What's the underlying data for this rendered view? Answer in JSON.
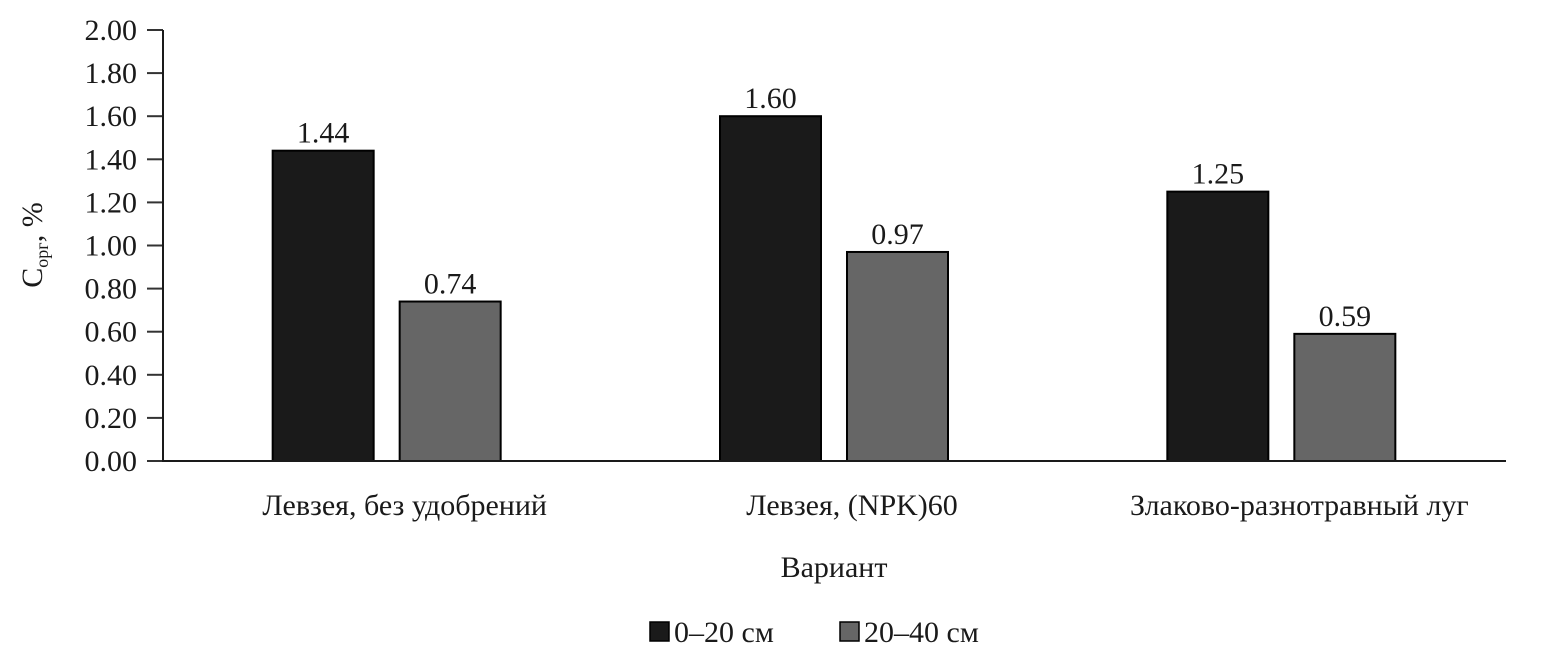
{
  "chart_data": {
    "type": "bar",
    "categories": [
      "Левзея, без удобрений",
      "Левзея, (NPK)60",
      "Злаково-разнотравный луг"
    ],
    "series": [
      {
        "name": "0–20 см",
        "values": [
          1.44,
          1.6,
          1.25
        ],
        "color": "#1a1a1a",
        "labels": [
          "1.44",
          "1.60",
          "1.25"
        ]
      },
      {
        "name": "20–40 см",
        "values": [
          0.74,
          0.97,
          0.59
        ],
        "color": "#666666",
        "labels": [
          "0.74",
          "0.97",
          "0.59"
        ]
      }
    ],
    "xlabel": "Вариант",
    "ylabel_main": "C",
    "ylabel_sub": "орг",
    "ylabel_tail": ", %",
    "ylim": [
      0,
      2.0
    ],
    "yticks": [
      "0.00",
      "0.20",
      "0.40",
      "0.60",
      "0.80",
      "1.00",
      "1.20",
      "1.40",
      "1.60",
      "1.80",
      "2.00"
    ],
    "grid": false,
    "legend_position": "bottom"
  }
}
